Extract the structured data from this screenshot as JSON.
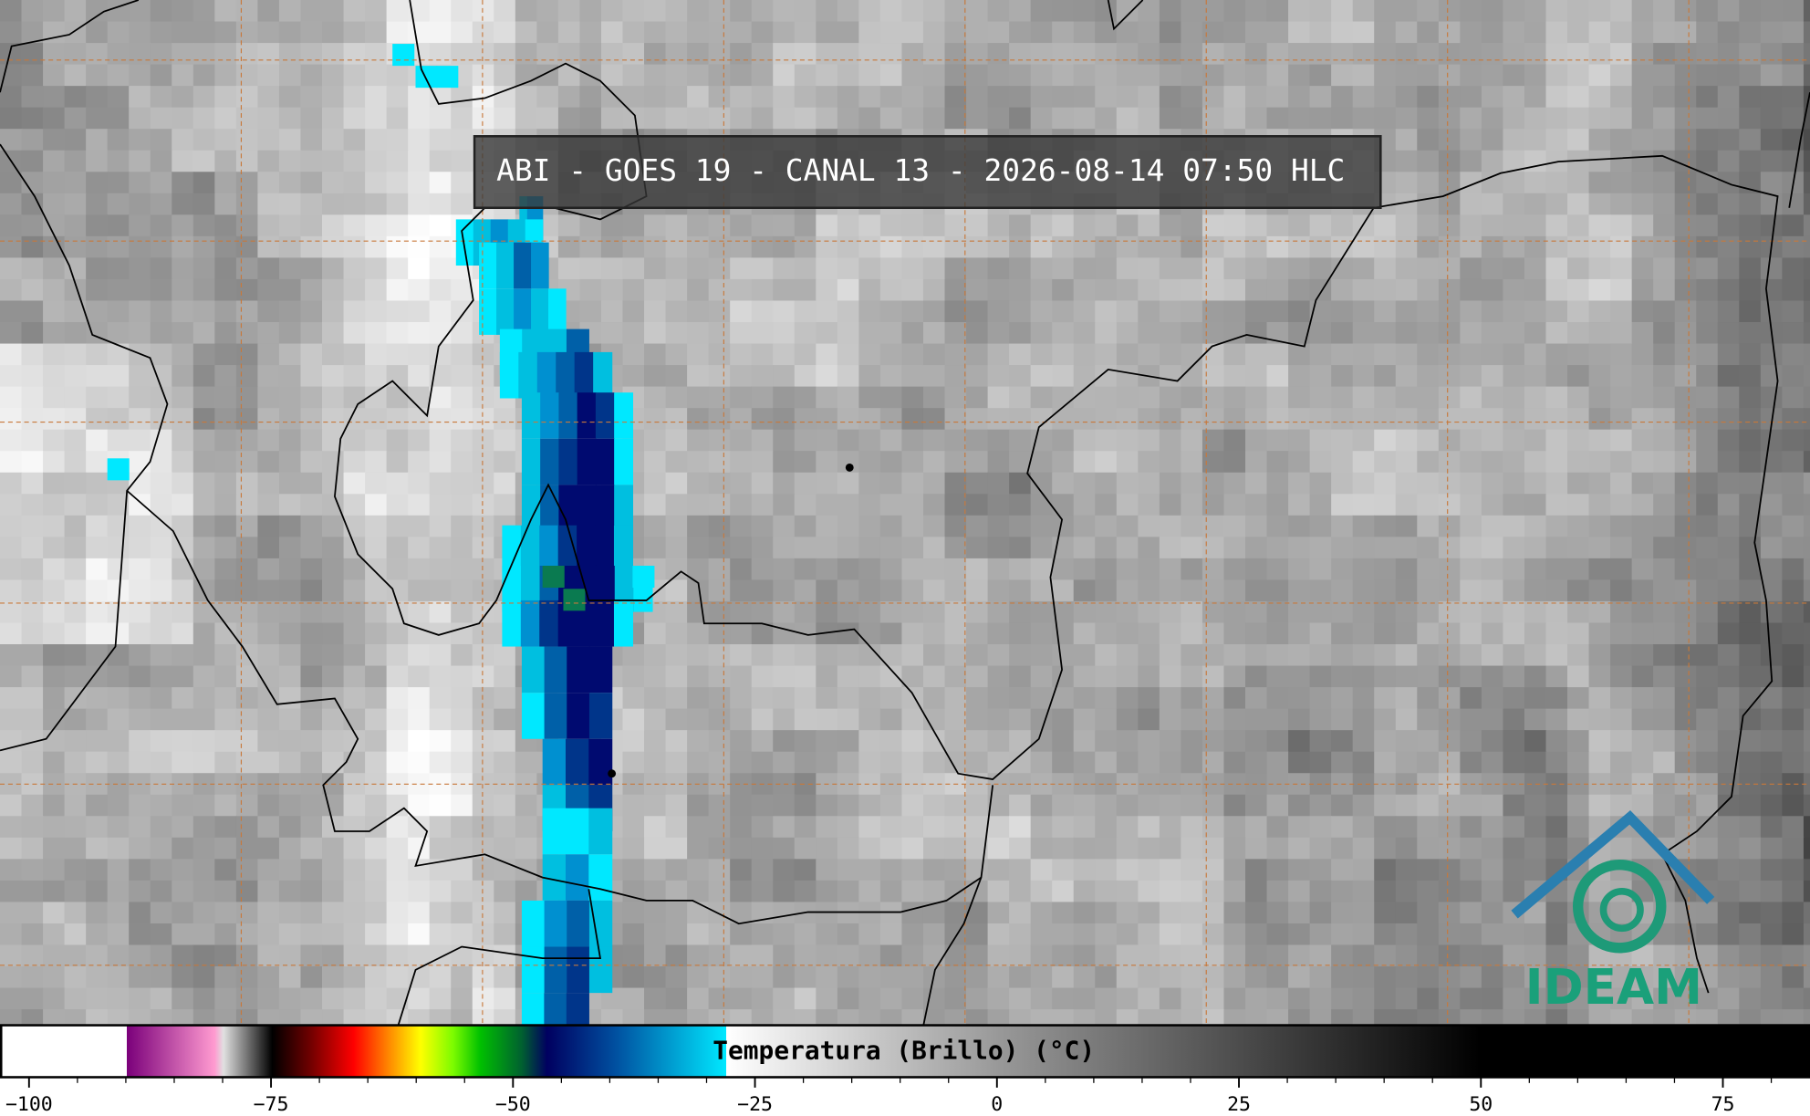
{
  "title": "ABI - GOES 19 - CANAL 13 - 2026-08-14 07:50 HLC",
  "logo": "IDEAM",
  "colorbar": {
    "label": "Temperatura (Brillo) (°C)",
    "lim": [
      -103,
      84
    ],
    "ticks": [
      {
        "value": -100,
        "label": "−100"
      },
      {
        "value": -75,
        "label": "−75"
      },
      {
        "value": -50,
        "label": "−50"
      },
      {
        "value": -25,
        "label": "−25"
      },
      0,
      25,
      50,
      75
    ],
    "minor_ticks": [
      -95,
      -90,
      -85,
      -80,
      -70,
      -65,
      -60,
      -55,
      -45,
      -40,
      -35,
      -30,
      -20,
      -15,
      -10,
      -5,
      5,
      10,
      15,
      20,
      30,
      35,
      40,
      45,
      55,
      60,
      65,
      70,
      80
    ]
  }
}
